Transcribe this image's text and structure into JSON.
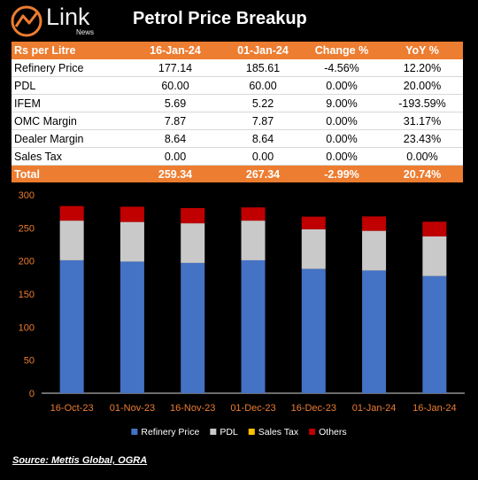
{
  "header": {
    "logo_text": "Link",
    "logo_sub": "News",
    "title": "Petrol Price Breakup"
  },
  "table": {
    "columns": [
      "Rs per Litre",
      "16-Jan-24",
      "01-Jan-24",
      "Change %",
      "YoY %"
    ],
    "rows": [
      [
        "Refinery Price",
        "177.14",
        "185.61",
        "-4.56%",
        "12.20%"
      ],
      [
        "PDL",
        "60.00",
        "60.00",
        "0.00%",
        "20.00%"
      ],
      [
        "IFEM",
        "5.69",
        "5.22",
        "9.00%",
        "-193.59%"
      ],
      [
        "OMC Margin",
        "7.87",
        "7.87",
        "0.00%",
        "31.17%"
      ],
      [
        "Dealer Margin",
        "8.64",
        "8.64",
        "0.00%",
        "23.43%"
      ],
      [
        "Sales Tax",
        "0.00",
        "0.00",
        "0.00%",
        "0.00%"
      ]
    ],
    "total": [
      "Total",
      "259.34",
      "267.34",
      "-2.99%",
      "20.74%"
    ]
  },
  "chart_data": {
    "type": "bar",
    "stacked": true,
    "categories": [
      "16-Oct-23",
      "01-Nov-23",
      "16-Nov-23",
      "01-Dec-23",
      "16-Dec-23",
      "01-Jan-24",
      "16-Jan-24"
    ],
    "series": [
      {
        "name": "Refinery Price",
        "color": "#4472c4",
        "values": [
          201,
          199,
          197,
          201,
          188,
          185.61,
          177.14
        ]
      },
      {
        "name": "PDL",
        "color": "#c9c9c9",
        "values": [
          60,
          60,
          60,
          60,
          60,
          60,
          60
        ]
      },
      {
        "name": "Sales Tax",
        "color": "#ffc000",
        "values": [
          0,
          0,
          0,
          0,
          0,
          0,
          0
        ]
      },
      {
        "name": "Others",
        "color": "#c00000",
        "values": [
          22,
          23,
          23,
          20,
          19,
          21.73,
          22.2
        ]
      }
    ],
    "ylim": [
      0,
      300
    ],
    "yticks": [
      0,
      50,
      100,
      150,
      200,
      250,
      300
    ],
    "grid": false,
    "legend_position": "bottom"
  },
  "source": "Source: Mettis Global, OGRA"
}
